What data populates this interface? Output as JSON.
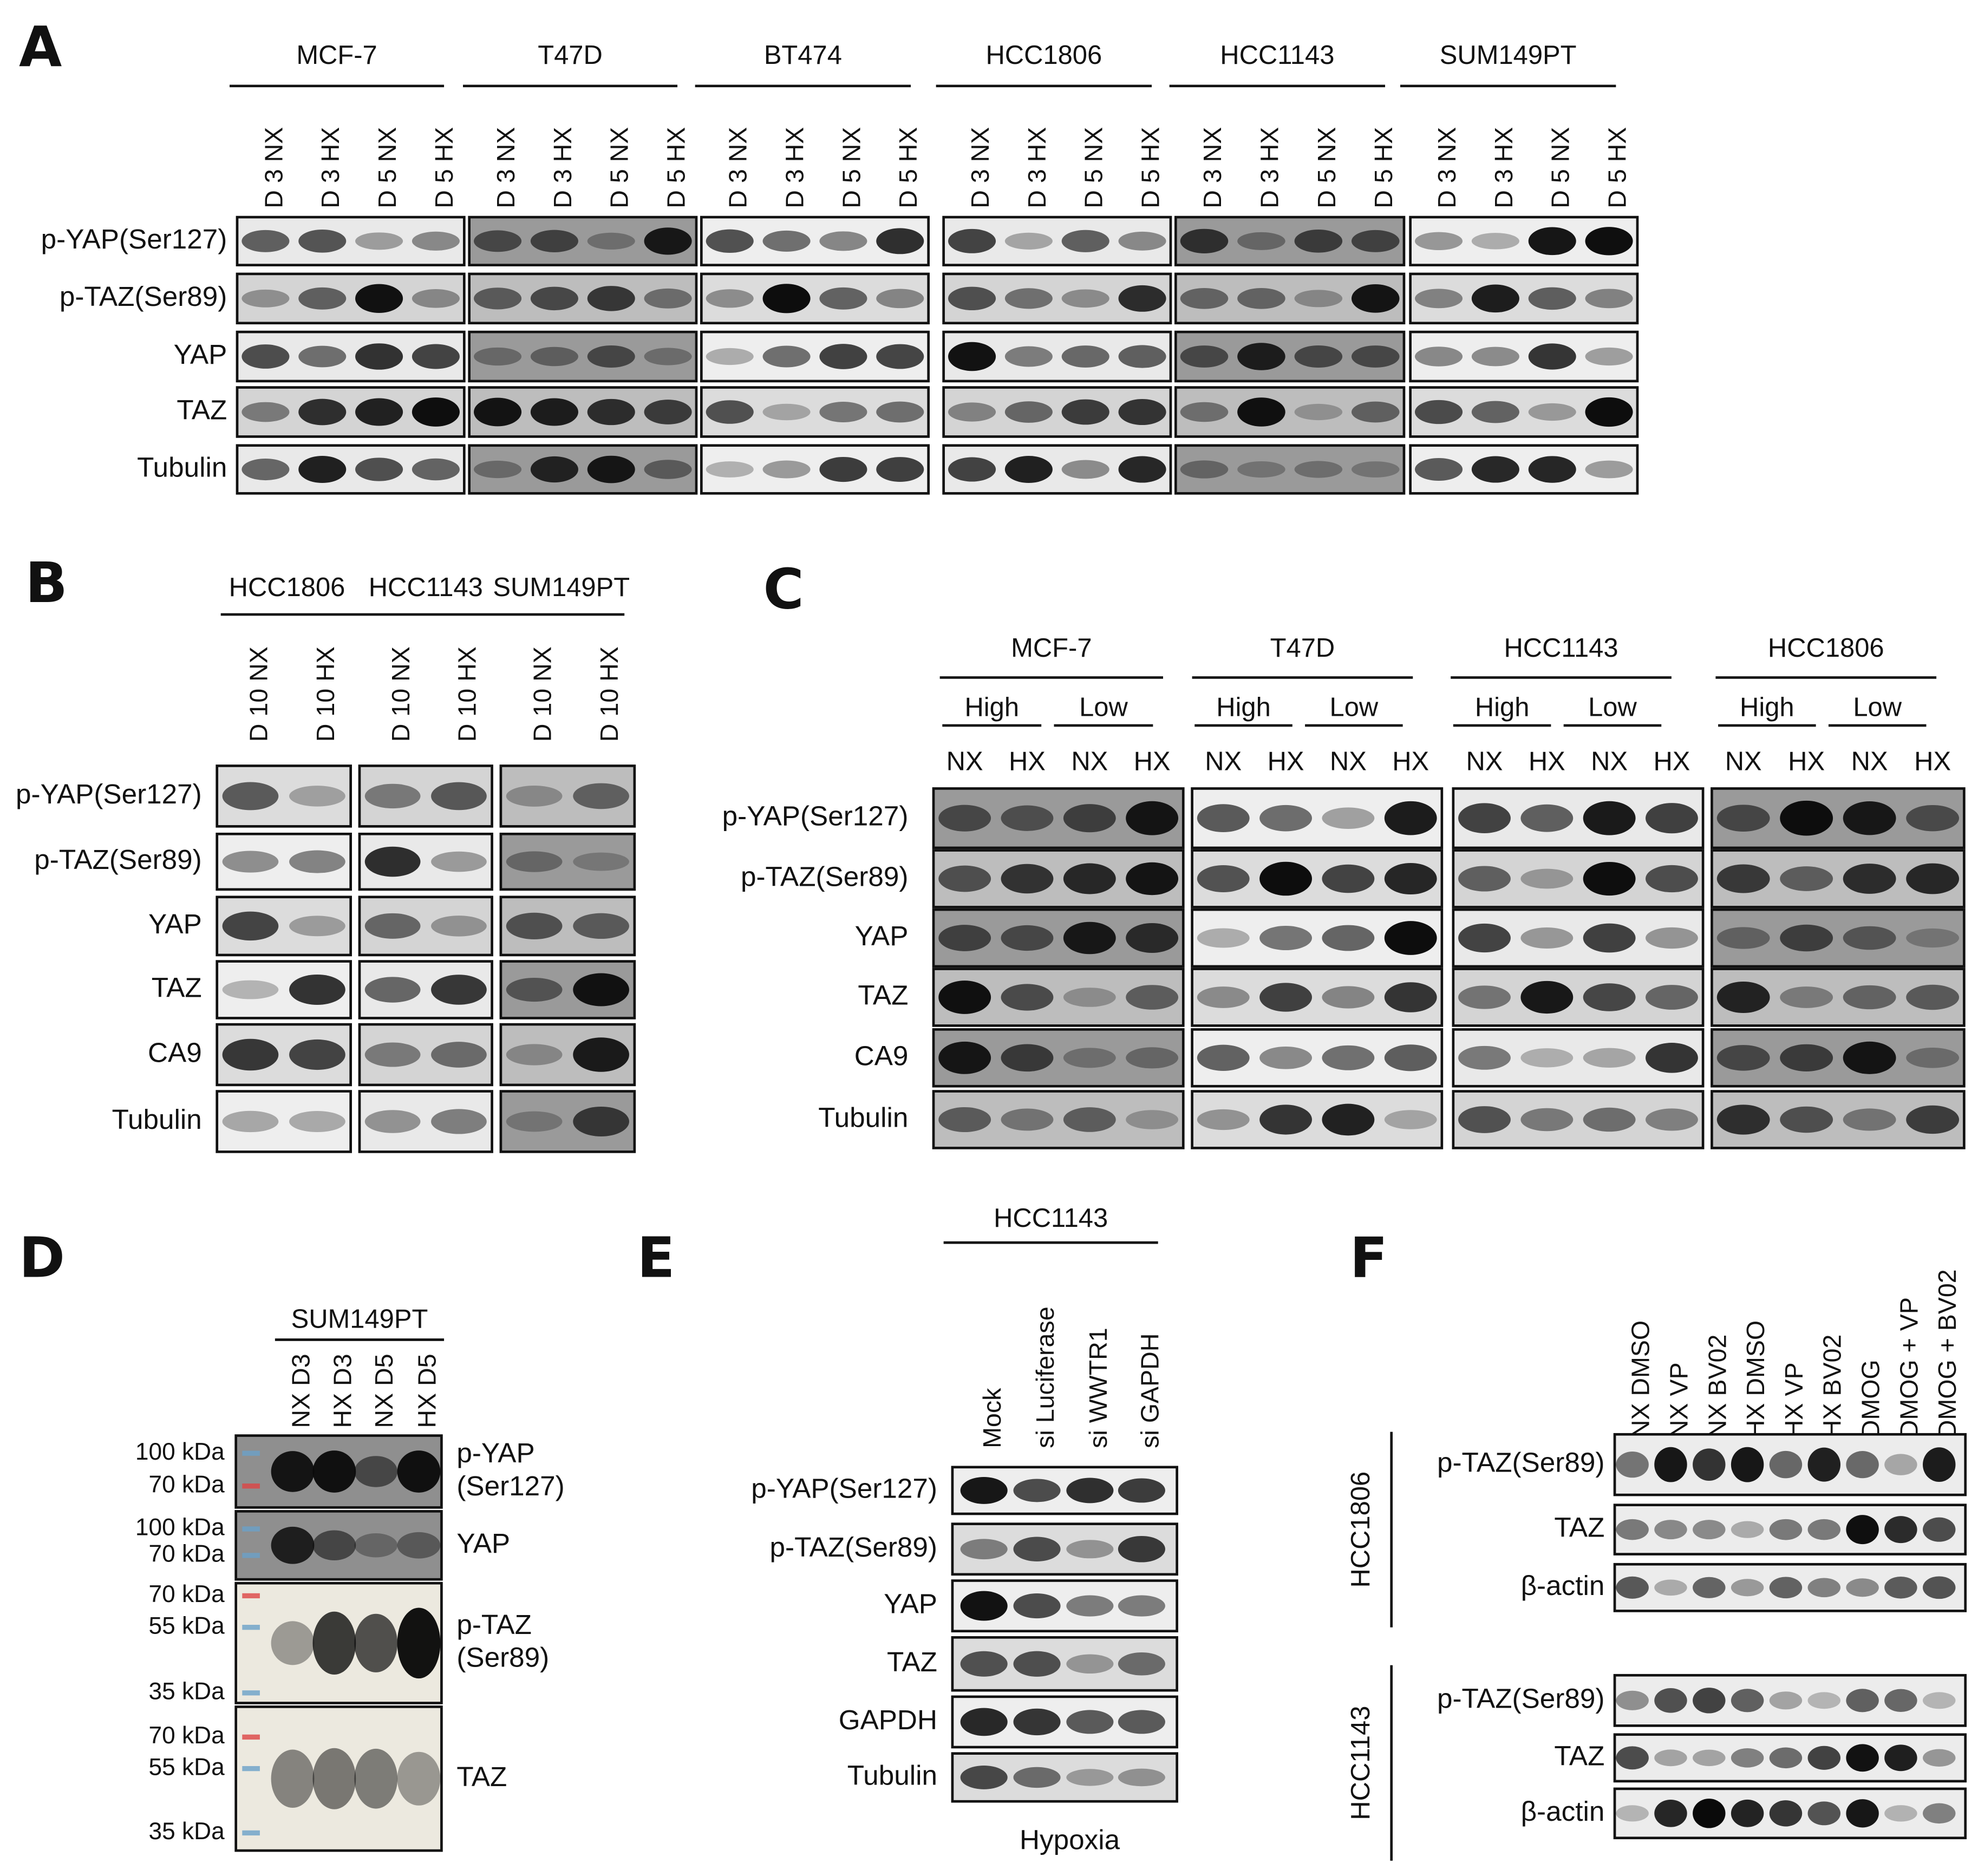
{
  "panels": [
    {
      "label": "A",
      "groups": [
        {
          "name": "MCF-7",
          "lanes": [
            "D 3 NX",
            "D 3 HX",
            "D 5 NX",
            "D 5 HX"
          ]
        },
        {
          "name": "T47D",
          "lanes": [
            "D 3 NX",
            "D 3 HX",
            "D 5 NX",
            "D 5 HX"
          ]
        },
        {
          "name": "BT474",
          "lanes": [
            "D 3 NX",
            "D 3 HX",
            "D 5 NX",
            "D 5 HX"
          ]
        },
        {
          "name": "HCC1806",
          "lanes": [
            "D 3 NX",
            "D 3 HX",
            "D 5 NX",
            "D 5 HX"
          ]
        },
        {
          "name": "HCC1143",
          "lanes": [
            "D 3 NX",
            "D 3 HX",
            "D 5 NX",
            "D 5 HX"
          ]
        },
        {
          "name": "SUM149PT",
          "lanes": [
            "D 3 NX",
            "D 3 HX",
            "D 5 NX",
            "D 5 HX"
          ]
        }
      ],
      "rows": [
        "p-YAP(Ser127)",
        "p-TAZ(Ser89)",
        "YAP",
        "TAZ",
        "Tubulin"
      ]
    },
    {
      "label": "B",
      "groups": [
        {
          "name": "HCC1806",
          "lanes": [
            "D 10 NX",
            "D 10 HX"
          ]
        },
        {
          "name": "HCC1143",
          "lanes": [
            "D 10 NX",
            "D 10 HX"
          ]
        },
        {
          "name": "SUM149PT",
          "lanes": [
            "D 10 NX",
            "D 10 HX"
          ]
        }
      ],
      "rows": [
        "p-YAP(Ser127)",
        "p-TAZ(Ser89)",
        "YAP",
        "TAZ",
        "CA9",
        "Tubulin"
      ]
    },
    {
      "label": "C",
      "groups": [
        {
          "name": "MCF-7",
          "conditions": [
            {
              "name": "High",
              "lanes": [
                "NX",
                "HX"
              ]
            },
            {
              "name": "Low",
              "lanes": [
                "NX",
                "HX"
              ]
            }
          ]
        },
        {
          "name": "T47D",
          "conditions": [
            {
              "name": "High",
              "lanes": [
                "NX",
                "HX"
              ]
            },
            {
              "name": "Low",
              "lanes": [
                "NX",
                "HX"
              ]
            }
          ]
        },
        {
          "name": "HCC1143",
          "conditions": [
            {
              "name": "High",
              "lanes": [
                "NX",
                "HX"
              ]
            },
            {
              "name": "Low",
              "lanes": [
                "NX",
                "HX"
              ]
            }
          ]
        },
        {
          "name": "HCC1806",
          "conditions": [
            {
              "name": "High",
              "lanes": [
                "NX",
                "HX"
              ]
            },
            {
              "name": "Low",
              "lanes": [
                "NX",
                "HX"
              ]
            }
          ]
        }
      ],
      "rows": [
        "p-YAP(Ser127)",
        "p-TAZ(Ser89)",
        "YAP",
        "TAZ",
        "CA9",
        "Tubulin"
      ]
    },
    {
      "label": "D",
      "groups": [
        {
          "name": "SUM149PT",
          "lanes": [
            "NX D3",
            "HX D3",
            "NX D5",
            "HX D5"
          ]
        }
      ],
      "rows": [
        [
          "p-YAP",
          "(Ser127)"
        ],
        [
          "YAP"
        ],
        [
          "p-TAZ",
          "(Ser89)"
        ],
        [
          "TAZ"
        ]
      ],
      "markers": [
        "100 kDa",
        "70 kDa",
        "100 kDa",
        "70 kDa",
        "70 kDa",
        "55 kDa",
        "35 kDa",
        "70 kDa",
        "55 kDa",
        "35 kDa"
      ]
    },
    {
      "label": "E",
      "groups": [
        {
          "name": "HCC1143",
          "lanes": [
            "Mock",
            "si Luciferase",
            "si WWTR1",
            "si GAPDH"
          ]
        }
      ],
      "rows": [
        "p-YAP(Ser127)",
        "p-TAZ(Ser89)",
        "YAP",
        "TAZ",
        "GAPDH",
        "Tubulin"
      ],
      "footer": "Hypoxia"
    },
    {
      "label": "F",
      "lanes": [
        "NX  DMSO",
        "NX  VP",
        "NX  BV02",
        "HX  DMSO",
        "HX  VP",
        "HX  BV02",
        "DMOG",
        "DMOG + VP",
        "DMOG + BV02"
      ],
      "cell_lines": [
        {
          "name": "HCC1806",
          "rows": [
            "p-TAZ(Ser89)",
            "TAZ",
            "β-actin"
          ]
        },
        {
          "name": "HCC1143",
          "rows": [
            "p-TAZ(Ser89)",
            "TAZ",
            "β-actin"
          ]
        }
      ]
    }
  ]
}
